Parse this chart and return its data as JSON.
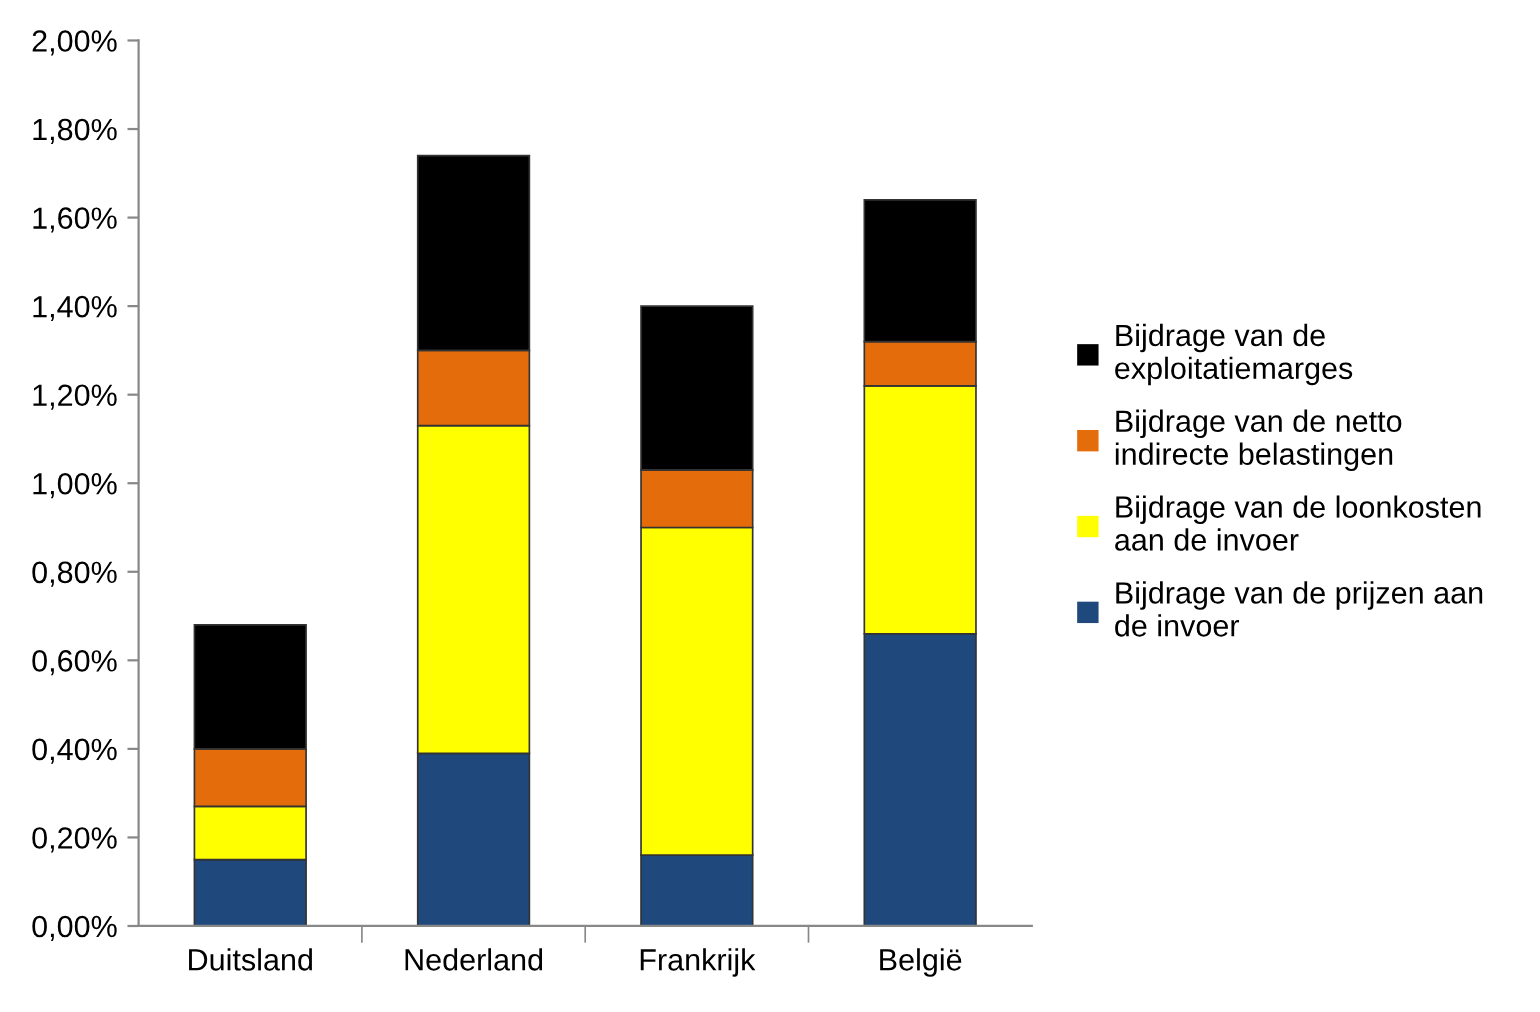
{
  "chart_data": {
    "type": "bar",
    "stacked": true,
    "categories": [
      "Duitsland",
      "Nederland",
      "Frankrijk",
      "België"
    ],
    "series": [
      {
        "name": "Bijdrage van de prijzen aan de invoer",
        "color": "#1f497d",
        "values": [
          0.15,
          0.39,
          0.16,
          0.66
        ]
      },
      {
        "name": "Bijdrage van de loonkosten aan de invoer",
        "color": "#ffff00",
        "values": [
          0.12,
          0.74,
          0.74,
          0.56
        ]
      },
      {
        "name": "Bijdrage van de netto indirecte belastingen",
        "color": "#e46c0a",
        "values": [
          0.13,
          0.17,
          0.13,
          0.1
        ]
      },
      {
        "name": "Bijdrage van de exploitatiemarges",
        "color": "#000000",
        "values": [
          0.28,
          0.44,
          0.37,
          0.32
        ]
      }
    ],
    "ylim": [
      0,
      2
    ],
    "yticks": [
      {
        "value": 0,
        "label": "0,00%"
      },
      {
        "value": 0.2,
        "label": "0,20%"
      },
      {
        "value": 0.4,
        "label": "0,40%"
      },
      {
        "value": 0.6,
        "label": "0,60%"
      },
      {
        "value": 0.8,
        "label": "0,80%"
      },
      {
        "value": 1.0,
        "label": "1,00%"
      },
      {
        "value": 1.2,
        "label": "1,20%"
      },
      {
        "value": 1.4,
        "label": "1,40%"
      },
      {
        "value": 1.6,
        "label": "1,60%"
      },
      {
        "value": 1.8,
        "label": "1,80%"
      },
      {
        "value": 2.0,
        "label": "2,00%"
      }
    ],
    "grid": false,
    "legend": "right"
  }
}
